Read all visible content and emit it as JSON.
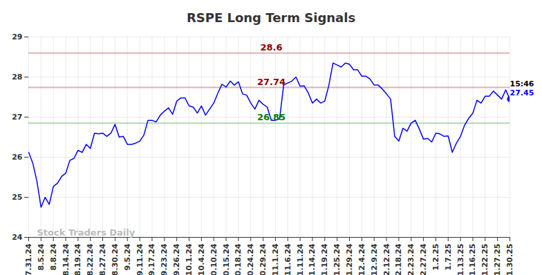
{
  "chart_data": {
    "type": "line",
    "title": "RSPE Long Term Signals",
    "watermark": "Stock Traders Daily",
    "last_time": "15:46",
    "color": "#0000ff",
    "grid": true,
    "ylim": [
      24,
      29
    ],
    "yticks": [
      24,
      25,
      26,
      27,
      28,
      29
    ],
    "reference_lines": [
      {
        "value": 28.6,
        "color": "#8b0000"
      },
      {
        "value": 27.74,
        "color": "#8b0000"
      },
      {
        "value": 26.85,
        "color": "#008000"
      }
    ],
    "categories": [
      "7.31.24",
      null,
      null,
      "8.5.24",
      null,
      null,
      "8.8.24",
      null,
      null,
      "8.14.24",
      null,
      null,
      "8.19.24",
      null,
      null,
      "8.22.24",
      null,
      null,
      "8.27.24",
      null,
      null,
      "8.30.24",
      null,
      null,
      "9.5.24",
      null,
      null,
      "9.11.24",
      null,
      null,
      "9.17.24",
      null,
      null,
      "9.23.24",
      null,
      null,
      "9.26.24",
      null,
      null,
      "10.1.24",
      null,
      null,
      "10.4.24",
      null,
      null,
      "10.10.24",
      null,
      null,
      "10.15.24",
      null,
      null,
      "10.18.24",
      null,
      null,
      "10.24.24",
      null,
      null,
      "10.29.24",
      null,
      null,
      "11.1.24",
      null,
      null,
      "11.6.24",
      null,
      null,
      "11.11.24",
      null,
      null,
      "11.14.24",
      null,
      null,
      "11.19.24",
      null,
      null,
      "11.25.24",
      null,
      null,
      "11.29.24",
      null,
      null,
      "12.4.24",
      null,
      null,
      "12.9.24",
      null,
      null,
      "12.12.24",
      null,
      null,
      "12.18.24",
      null,
      null,
      "12.23.24",
      null,
      null,
      "12.27.24",
      null,
      null,
      "1.2.25",
      null,
      null,
      "1.7.25",
      null,
      null,
      "1.13.25",
      null,
      null,
      "1.16.25",
      null,
      null,
      "1.22.25",
      null,
      null,
      "1.27.25",
      null,
      null,
      "1.30.25"
    ],
    "values": [
      26.12,
      25.85,
      25.4,
      24.75,
      25.0,
      24.82,
      25.27,
      25.35,
      25.52,
      25.6,
      25.92,
      25.97,
      26.17,
      26.12,
      26.32,
      26.22,
      26.6,
      26.58,
      26.6,
      26.52,
      26.6,
      26.82,
      26.5,
      26.52,
      26.32,
      26.32,
      26.35,
      26.4,
      26.55,
      26.92,
      26.92,
      26.88,
      27.05,
      27.15,
      27.23,
      27.07,
      27.4,
      27.48,
      27.48,
      27.28,
      27.25,
      27.1,
      27.28,
      27.05,
      27.2,
      27.35,
      27.6,
      27.82,
      27.75,
      27.9,
      27.8,
      27.88,
      27.58,
      27.55,
      27.35,
      27.2,
      27.42,
      27.32,
      27.25,
      26.92,
      26.92,
      26.95,
      27.8,
      27.85,
      27.9,
      28.0,
      27.77,
      27.78,
      27.6,
      27.35,
      27.45,
      27.35,
      27.4,
      27.8,
      28.35,
      28.3,
      28.25,
      28.35,
      28.32,
      28.18,
      28.18,
      28.02,
      28.02,
      27.95,
      27.8,
      27.8,
      27.7,
      27.58,
      27.45,
      26.52,
      26.4,
      26.72,
      26.65,
      26.85,
      26.92,
      26.7,
      26.45,
      26.47,
      26.38,
      26.6,
      26.58,
      26.52,
      26.53,
      26.12,
      26.35,
      26.52,
      26.8,
      26.97,
      27.1,
      27.42,
      27.35,
      27.52,
      27.52,
      27.65,
      27.55,
      27.45,
      27.68,
      27.45
    ]
  }
}
